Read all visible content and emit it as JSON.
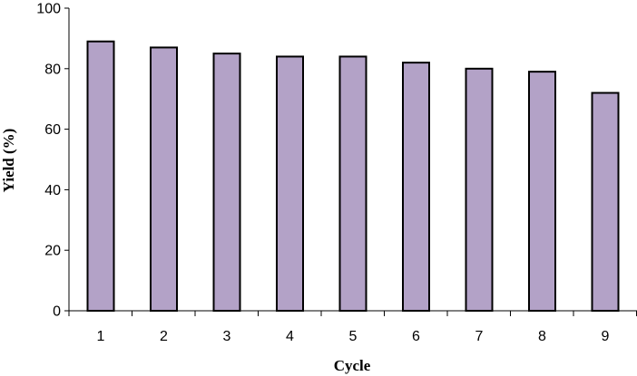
{
  "chart_data": {
    "type": "bar",
    "title": "",
    "xlabel": "Cycle",
    "ylabel": "Yield (%)",
    "categories": [
      "1",
      "2",
      "3",
      "4",
      "5",
      "6",
      "7",
      "8",
      "9"
    ],
    "values": [
      89,
      87,
      85,
      84,
      84,
      82,
      80,
      79,
      72
    ],
    "ylim": [
      0,
      100
    ],
    "yticks": [
      0,
      20,
      40,
      60,
      80,
      100
    ],
    "grid": false,
    "legend": "none",
    "bar_color": "#b3a2c7",
    "bar_edge_color": "#000000"
  }
}
